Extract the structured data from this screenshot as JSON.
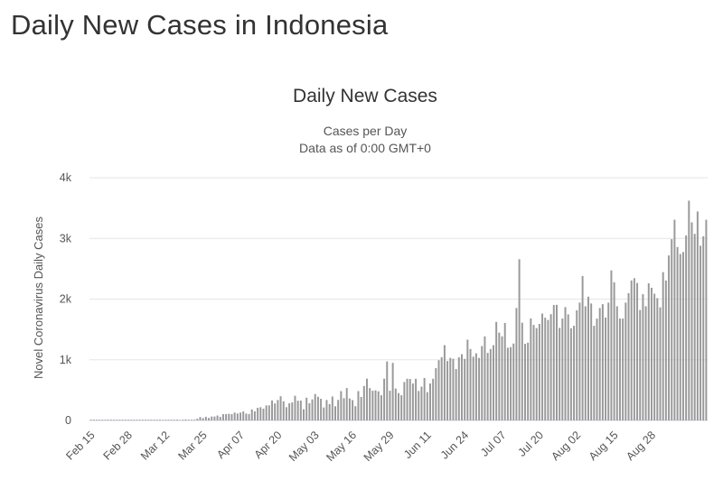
{
  "page": {
    "heading": "Daily New Cases in Indonesia"
  },
  "chart_data": {
    "type": "bar",
    "title": "Daily New Cases",
    "subtitle": "Cases per Day",
    "subtitle2": "Data as of 0:00 GMT+0",
    "ylabel": "Novel Coronavirus Daily Cases",
    "xlabel": "",
    "ylim": [
      0,
      4000
    ],
    "y_ticks": [
      0,
      1000,
      2000,
      3000,
      4000
    ],
    "y_tick_labels": [
      "0",
      "1k",
      "2k",
      "3k",
      "4k"
    ],
    "x_tick_labels": [
      "Feb 15",
      "Feb 28",
      "Mar 12",
      "Mar 25",
      "Apr 07",
      "Apr 20",
      "May 03",
      "May 16",
      "May 29",
      "Jun 11",
      "Jun 24",
      "Jul 07",
      "Jul 20",
      "Aug 02",
      "Aug 15",
      "Aug 28"
    ],
    "x_tick_interval_days": 13,
    "start_date": "Feb 15",
    "bar_color": "#999999",
    "grid": true,
    "legend": "none",
    "values": [
      0,
      0,
      0,
      0,
      0,
      0,
      0,
      0,
      0,
      0,
      0,
      0,
      0,
      0,
      0,
      0,
      0,
      0,
      0,
      0,
      0,
      0,
      0,
      0,
      0,
      2,
      0,
      0,
      0,
      0,
      13,
      3,
      0,
      17,
      0,
      0,
      0,
      27,
      55,
      38,
      60,
      41,
      64,
      65,
      81,
      60,
      105,
      105,
      109,
      103,
      130,
      114,
      129,
      149,
      113,
      106,
      181,
      150,
      208,
      218,
      194,
      248,
      248,
      330,
      280,
      337,
      399,
      316,
      219,
      282,
      297,
      407,
      325,
      327,
      185,
      375,
      283,
      347,
      436,
      390,
      357,
      214,
      337,
      271,
      395,
      233,
      338,
      484,
      367,
      533,
      362,
      335,
      235,
      484,
      387,
      568,
      689,
      533,
      489,
      496,
      480,
      415,
      688,
      973,
      490,
      949,
      526,
      451,
      415,
      634,
      687,
      684,
      609,
      687,
      486,
      557,
      700,
      467,
      609,
      687,
      862,
      993,
      1043,
      1241,
      979,
      1031,
      1017,
      847,
      1041,
      1092,
      1014,
      1331,
      1178,
      1051,
      1106,
      1031,
      1226,
      1385,
      1113,
      1178,
      1240,
      1624,
      1447,
      1385,
      1607,
      1198,
      1209,
      1268,
      1853,
      2657,
      1611,
      1262,
      1282,
      1681,
      1574,
      1522,
      1591,
      1762,
      1693,
      1656,
      1752,
      1904,
      1906,
      1525,
      1679,
      1868,
      1748,
      1519,
      1560,
      1815,
      1942,
      2381,
      1882,
      2040,
      1928,
      1560,
      1679,
      1853,
      1917,
      1696,
      1942,
      2473,
      2277,
      1882,
      1679,
      1679,
      1942,
      2098,
      2307,
      2345,
      2266,
      1821,
      2081,
      1882,
      2260,
      2187,
      2090,
      2016,
      1864,
      2444,
      2307,
      2719,
      2988,
      3308,
      2858,
      2743,
      2775,
      3049,
      3622,
      3266,
      3075,
      3444,
      2880,
      3035,
      3307
    ]
  }
}
